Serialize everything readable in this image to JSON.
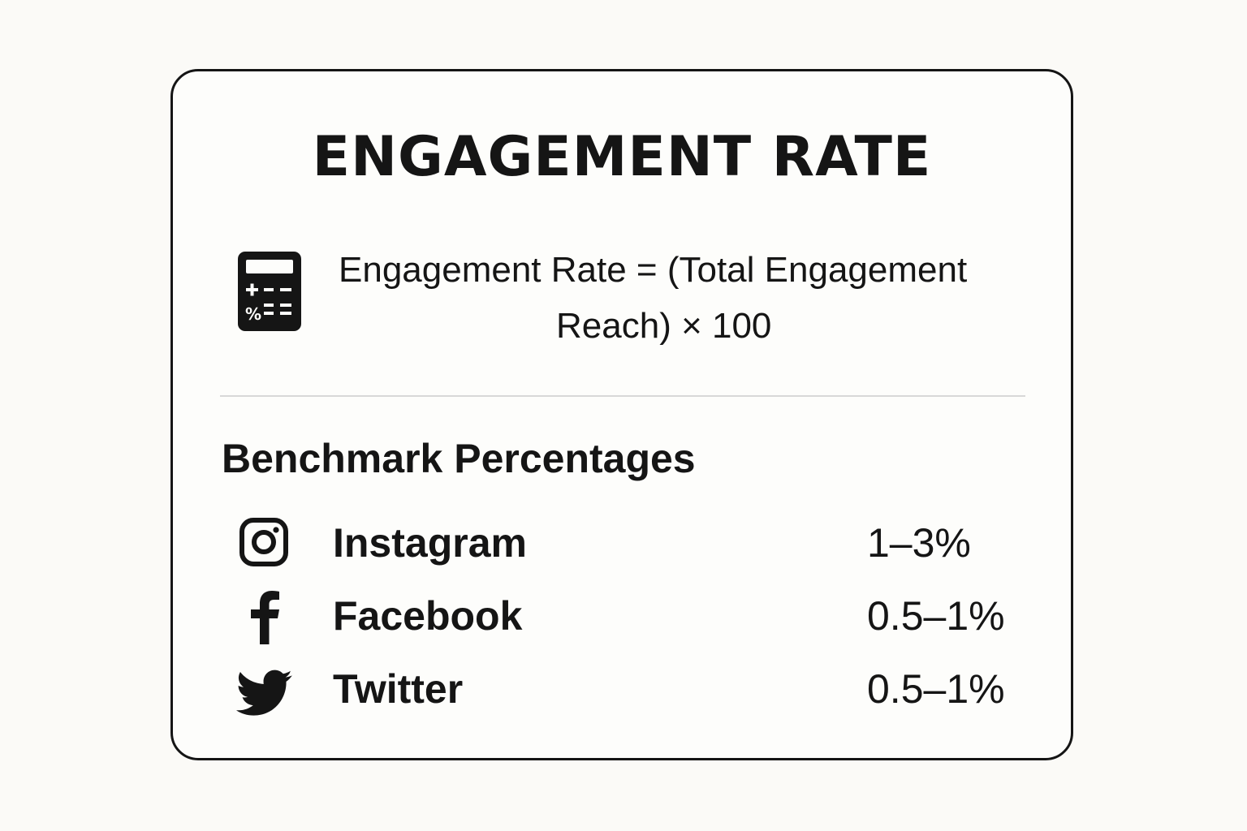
{
  "card": {
    "title": "ENGAGEMENT RATE",
    "formula": {
      "icon": "calculator-icon",
      "line1": "Engagement Rate = (Total Engagement",
      "line2": "Reach) × 100"
    },
    "benchmarks": {
      "heading": "Benchmark Percentages",
      "rows": [
        {
          "icon": "instagram-icon",
          "platform": "Instagram",
          "value": "1–3%"
        },
        {
          "icon": "facebook-icon",
          "platform": "Facebook",
          "value": "0.5–1%"
        },
        {
          "icon": "twitter-icon",
          "platform": "Twitter",
          "value": "0.5–1%"
        }
      ]
    }
  }
}
